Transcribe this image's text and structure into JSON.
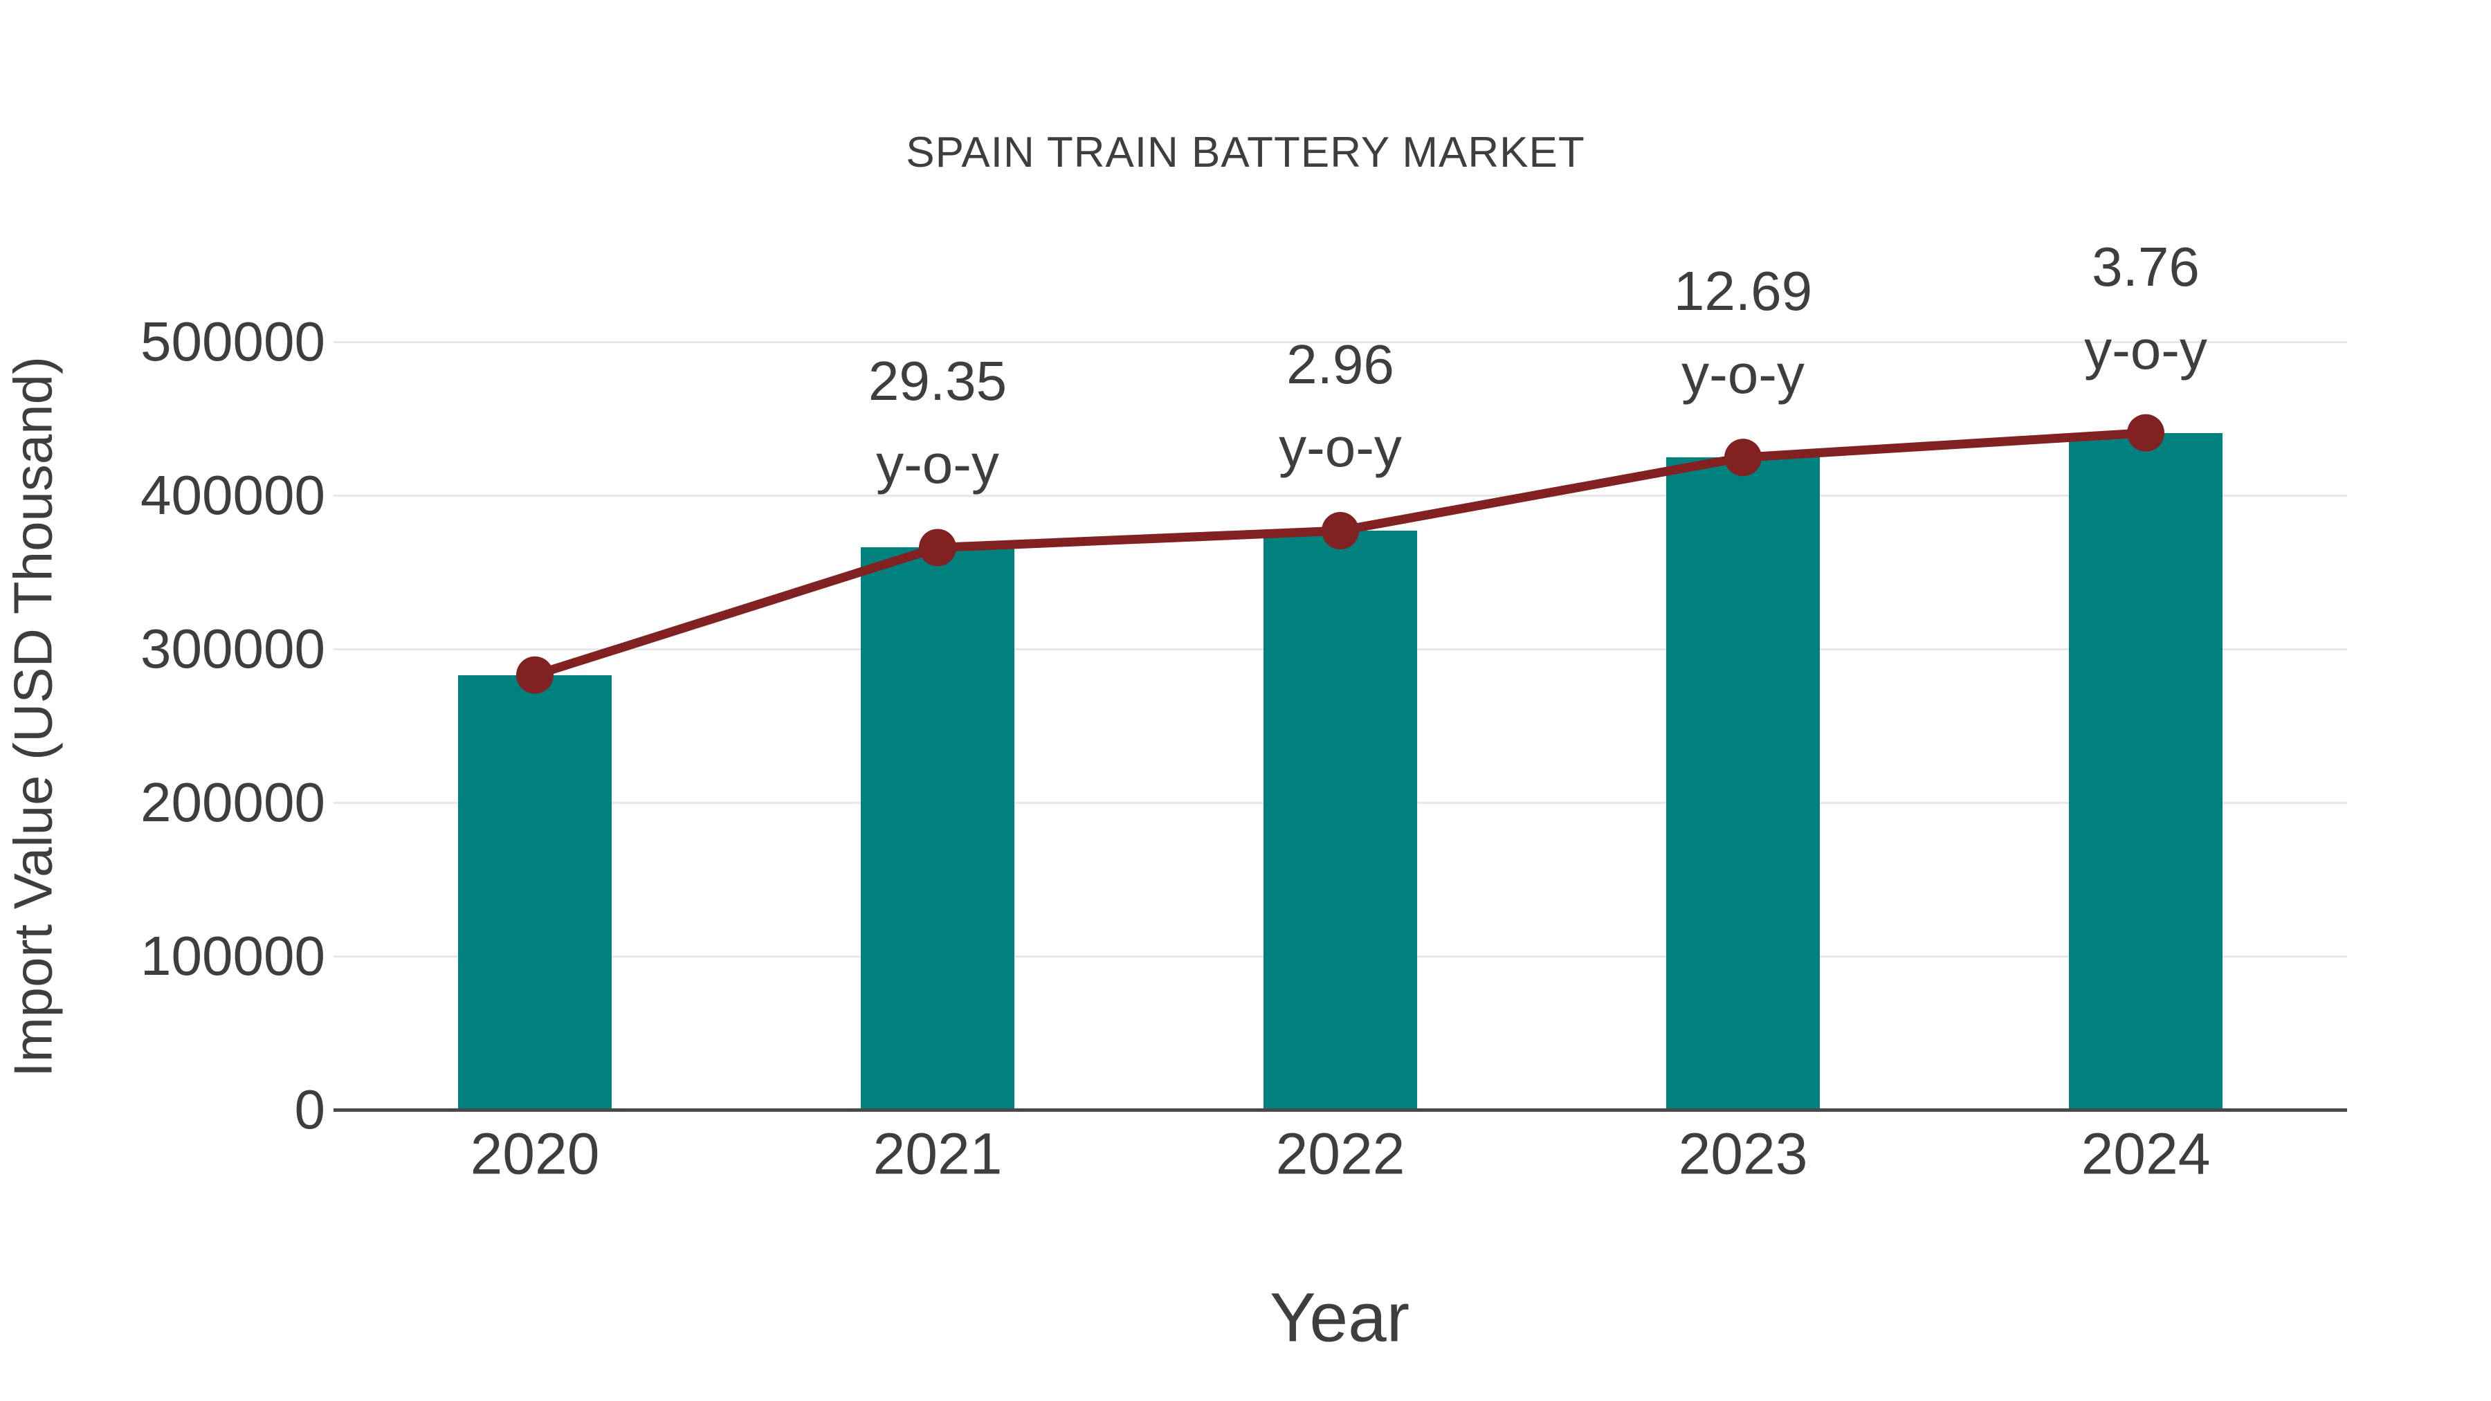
{
  "chart_data": {
    "type": "bar",
    "subtype": "bar-with-line-overlay",
    "title": "SPAIN TRAIN BATTERY MARKET",
    "xlabel": "Year",
    "ylabel": "Import Value (USD Thousand)",
    "categories": [
      "2020",
      "2021",
      "2022",
      "2023",
      "2024"
    ],
    "series": [
      {
        "name": "Import Value (USD Thousand)",
        "type": "bar",
        "values": [
          283000,
          366000,
          377000,
          424700,
          440700
        ]
      },
      {
        "name": "Year-over-year trend line",
        "type": "line",
        "values": [
          283000,
          366000,
          377000,
          424700,
          440700
        ]
      }
    ],
    "annotations": [
      {
        "category": "2021",
        "value": "29.35",
        "label": "y-o-y"
      },
      {
        "category": "2022",
        "value": "2.96",
        "label": "y-o-y"
      },
      {
        "category": "2023",
        "value": "12.69",
        "label": "y-o-y"
      },
      {
        "category": "2024",
        "value": "3.76",
        "label": "y-o-y"
      }
    ],
    "yticks": [
      0,
      100000,
      200000,
      300000,
      400000,
      500000
    ],
    "ylim": [
      0,
      542000
    ],
    "grid": "horizontal-only",
    "legend_position": "none",
    "colors": {
      "bar": "#00817E",
      "line": "#822121",
      "marker": "#822121",
      "text": "#3E3E3E",
      "grid": "#E8E8E8",
      "axis": "#4A4A4A",
      "background": "#FFFFFF"
    }
  }
}
